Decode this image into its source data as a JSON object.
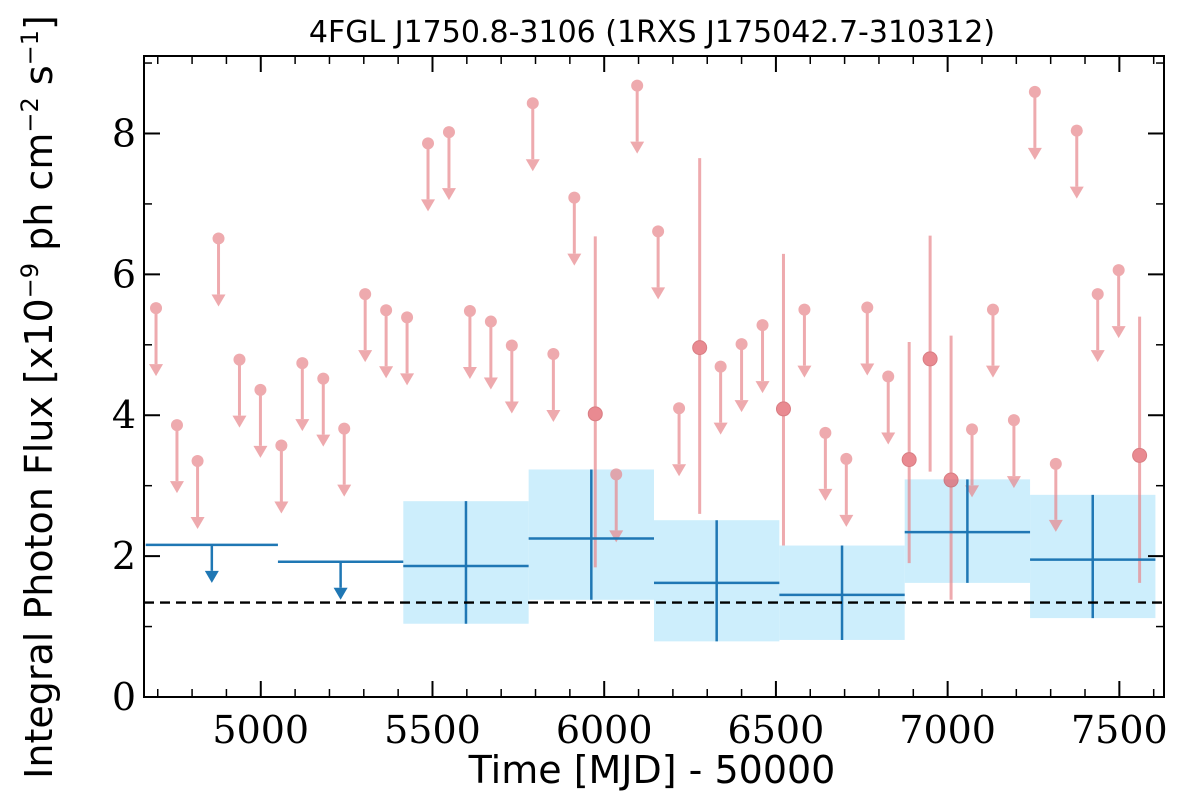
{
  "chart_data": {
    "type": "scatter",
    "title": "4FGL J1750.8-3106 (1RXS J175042.7-310312)",
    "xlabel": "Time [MJD] - 50000",
    "ylabel": "Integral Photon Flux [x10^-9 ph cm^-2 s^-1]",
    "xlim": [
      4660,
      7630
    ],
    "ylim": [
      0,
      9.1
    ],
    "xticks": [
      5000,
      5500,
      6000,
      6500,
      7000,
      7500
    ],
    "yticks": [
      0,
      2,
      4,
      6,
      8
    ],
    "reference_line": 1.34,
    "colors": {
      "short_bins": "#e8878c",
      "long_bins": "#1f77b4",
      "error_band": "#cdeefc",
      "reference_line": "#000000"
    },
    "series": [
      {
        "style": "short-bin upper limits",
        "upper_limits": [
          {
            "x": 4695,
            "y": 5.52
          },
          {
            "x": 4756,
            "y": 3.86
          },
          {
            "x": 4816,
            "y": 3.35
          },
          {
            "x": 4877,
            "y": 6.51
          },
          {
            "x": 4938,
            "y": 4.79
          },
          {
            "x": 4999,
            "y": 4.36
          },
          {
            "x": 5060,
            "y": 3.57
          },
          {
            "x": 5121,
            "y": 4.74
          },
          {
            "x": 5182,
            "y": 4.52
          },
          {
            "x": 5243,
            "y": 3.81
          },
          {
            "x": 5304,
            "y": 5.72
          },
          {
            "x": 5365,
            "y": 5.49
          },
          {
            "x": 5426,
            "y": 5.39
          },
          {
            "x": 5487,
            "y": 7.86
          },
          {
            "x": 5548,
            "y": 8.02
          },
          {
            "x": 5609,
            "y": 5.48
          },
          {
            "x": 5670,
            "y": 5.33
          },
          {
            "x": 5731,
            "y": 4.99
          },
          {
            "x": 5792,
            "y": 8.43
          },
          {
            "x": 5852,
            "y": 4.87
          },
          {
            "x": 5913,
            "y": 7.09
          },
          {
            "x": 6035,
            "y": 3.16
          },
          {
            "x": 6096,
            "y": 8.68
          },
          {
            "x": 6157,
            "y": 6.61
          },
          {
            "x": 6218,
            "y": 4.1
          },
          {
            "x": 6339,
            "y": 4.69
          },
          {
            "x": 6400,
            "y": 5.01
          },
          {
            "x": 6461,
            "y": 5.28
          },
          {
            "x": 6583,
            "y": 5.5
          },
          {
            "x": 6644,
            "y": 3.75
          },
          {
            "x": 6705,
            "y": 3.38
          },
          {
            "x": 6766,
            "y": 5.53
          },
          {
            "x": 6827,
            "y": 4.55
          },
          {
            "x": 7071,
            "y": 3.8
          },
          {
            "x": 7132,
            "y": 5.5
          },
          {
            "x": 7193,
            "y": 3.93
          },
          {
            "x": 7254,
            "y": 8.59
          },
          {
            "x": 7315,
            "y": 3.31
          },
          {
            "x": 7376,
            "y": 8.04
          },
          {
            "x": 7437,
            "y": 5.72
          },
          {
            "x": 7498,
            "y": 6.06
          }
        ],
        "detections": [
          {
            "x": 5974,
            "y": 4.02,
            "ylow": 1.84,
            "yhigh": 6.54
          },
          {
            "x": 6278,
            "y": 4.96,
            "ylow": 2.6,
            "yhigh": 7.65
          },
          {
            "x": 6522,
            "y": 4.09,
            "ylow": 2.15,
            "yhigh": 6.29
          },
          {
            "x": 6888,
            "y": 3.37,
            "ylow": 1.9,
            "yhigh": 5.04
          },
          {
            "x": 6949,
            "y": 4.8,
            "ylow": 3.2,
            "yhigh": 6.55
          },
          {
            "x": 7010,
            "y": 3.08,
            "ylow": 1.38,
            "yhigh": 5.13
          },
          {
            "x": 7559,
            "y": 3.43,
            "ylow": 1.62,
            "yhigh": 5.4
          }
        ]
      },
      {
        "style": "long-bin",
        "upper_limits": [
          {
            "x0": 4665,
            "x1": 5050,
            "y": 2.16
          },
          {
            "x0": 5050,
            "x1": 5415,
            "y": 1.92
          }
        ],
        "detections": [
          {
            "x0": 5415,
            "x1": 5780,
            "y": 1.86,
            "ylow": 1.04,
            "yhigh": 2.78
          },
          {
            "x0": 5780,
            "x1": 6145,
            "y": 2.25,
            "ylow": 1.38,
            "yhigh": 3.23
          },
          {
            "x0": 6145,
            "x1": 6510,
            "y": 1.62,
            "ylow": 0.79,
            "yhigh": 2.51
          },
          {
            "x0": 6510,
            "x1": 6875,
            "y": 1.45,
            "ylow": 0.81,
            "yhigh": 2.15
          },
          {
            "x0": 6875,
            "x1": 7240,
            "y": 2.34,
            "ylow": 1.62,
            "yhigh": 3.09
          },
          {
            "x0": 7240,
            "x1": 7605,
            "y": 1.95,
            "ylow": 1.12,
            "yhigh": 2.87
          }
        ]
      }
    ]
  }
}
